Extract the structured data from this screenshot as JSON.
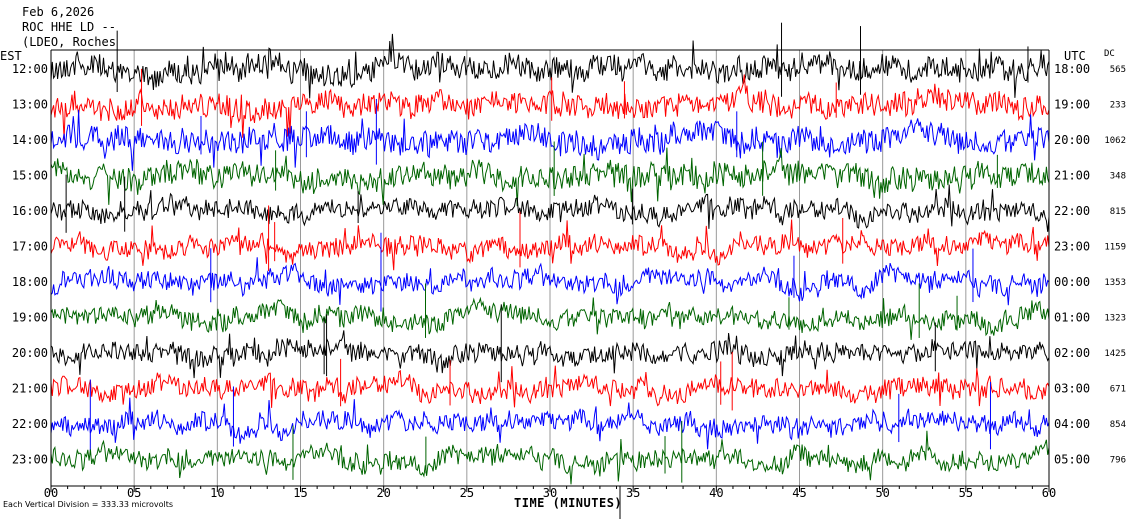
{
  "header": {
    "date": "Feb 6,2026",
    "station": "ROC HHE LD --",
    "network": "(LDEO, Roches"
  },
  "left_title": "EST",
  "right_title": "UTC",
  "dc_title": "DC",
  "footer": "Each Vertical Division =  333.33 microvolts",
  "chart_data": {
    "type": "line",
    "xlabel": "TIME (MINUTES)",
    "x_ticks": [
      "00",
      "05",
      "10",
      "15",
      "20",
      "25",
      "30",
      "35",
      "40",
      "45",
      "50",
      "55",
      "60"
    ],
    "xlim": [
      0,
      60
    ],
    "colors": [
      "#000000",
      "#ff0000",
      "#0000ff",
      "#006400"
    ],
    "rows": [
      {
        "est": "12:00",
        "utc": "18:00",
        "dc": "565",
        "color": "#000000"
      },
      {
        "est": "13:00",
        "utc": "19:00",
        "dc": "233",
        "color": "#ff0000"
      },
      {
        "est": "14:00",
        "utc": "20:00",
        "dc": "1062",
        "color": "#0000ff"
      },
      {
        "est": "15:00",
        "utc": "21:00",
        "dc": "348",
        "color": "#006400"
      },
      {
        "est": "16:00",
        "utc": "22:00",
        "dc": "815",
        "color": "#000000"
      },
      {
        "est": "17:00",
        "utc": "23:00",
        "dc": "1159",
        "color": "#ff0000"
      },
      {
        "est": "18:00",
        "utc": "00:00",
        "dc": "1353",
        "color": "#0000ff"
      },
      {
        "est": "19:00",
        "utc": "01:00",
        "dc": "1323",
        "color": "#006400"
      },
      {
        "est": "20:00",
        "utc": "02:00",
        "dc": "1425",
        "color": "#000000"
      },
      {
        "est": "21:00",
        "utc": "03:00",
        "dc": "671",
        "color": "#ff0000"
      },
      {
        "est": "22:00",
        "utc": "04:00",
        "dc": "854",
        "color": "#0000ff"
      },
      {
        "est": "23:00",
        "utc": "05:00",
        "dc": "796",
        "color": "#006400"
      }
    ]
  }
}
